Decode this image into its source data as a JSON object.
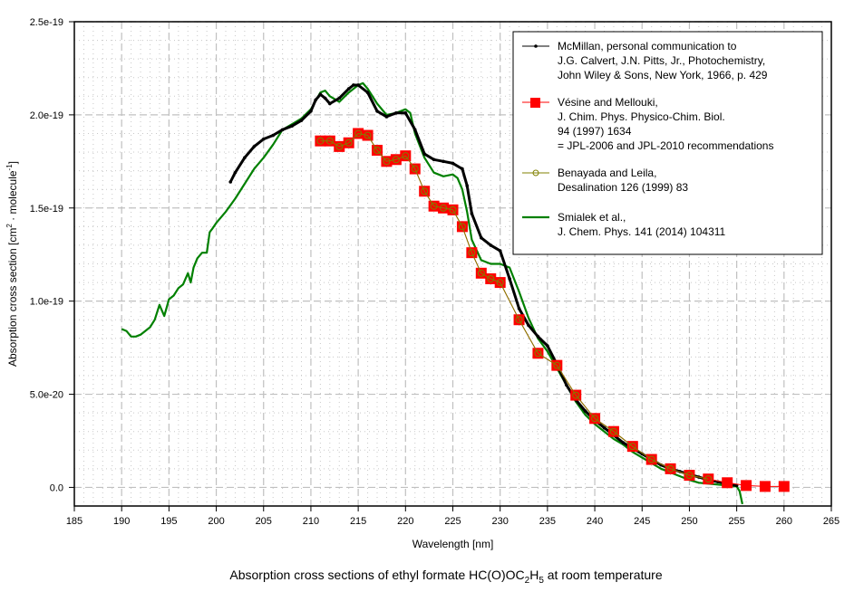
{
  "chart_data": {
    "type": "line",
    "title": "Absorption cross sections of ethyl formate HC(O)OC2H5 at room temperature",
    "title_parts": {
      "pre": "Absorption cross sections of ethyl formate HC(O)OC",
      "sub1": "2",
      "mid": "H",
      "sub2": "5",
      "post": " at room temperature"
    },
    "xlabel": "Wavelength [nm]",
    "ylabel_parts": {
      "pre": "Absorption cross section [cm",
      "sup1": "2",
      "mid": " · molecule",
      "sup2": "-1",
      "post": "]"
    },
    "ylabel": "Absorption cross section [cm2 · molecule-1]",
    "xlim": [
      185,
      265
    ],
    "ylim": [
      -1e-20,
      2.5e-19
    ],
    "grid": true,
    "legend_position": "top-right",
    "x_ticks": [
      "185",
      "190",
      "195",
      "200",
      "205",
      "210",
      "215",
      "220",
      "225",
      "230",
      "235",
      "240",
      "245",
      "250",
      "255",
      "260",
      "265"
    ],
    "y_ticks": [
      {
        "value": 0,
        "label": "0.0"
      },
      {
        "value": 5e-20,
        "label": "5.0e-20"
      },
      {
        "value": 1e-19,
        "label": "1.0e-19"
      },
      {
        "value": 1.5e-19,
        "label": "1.5e-19"
      },
      {
        "value": 2e-19,
        "label": "2.0e-19"
      },
      {
        "value": 2.5e-19,
        "label": "2.5e-19"
      }
    ],
    "series": [
      {
        "name": "McMillan",
        "legend": [
          "McMillan, personal communication to",
          "J.G. Calvert, J.N. Pitts, Jr., Photochemistry,",
          "John Wiley & Sons, New York, 1966, p. 429"
        ],
        "color": "#000000",
        "marker": "small-dot",
        "unit_scale": 1e-19,
        "x": [
          201.5,
          202,
          203,
          204,
          205,
          206,
          207,
          208,
          209,
          210,
          210.5,
          211,
          211.5,
          212,
          213,
          214,
          214.5,
          215,
          216,
          217,
          218,
          219,
          220,
          221,
          222,
          223,
          224,
          225,
          226,
          226.5,
          227,
          228,
          229,
          230,
          231,
          232,
          233,
          234,
          235,
          236,
          237,
          238,
          239,
          240,
          241,
          242,
          243,
          244,
          245,
          246,
          247,
          248,
          249,
          250,
          251,
          252,
          253,
          254,
          255
        ],
        "y": [
          1.64,
          1.69,
          1.77,
          1.83,
          1.87,
          1.89,
          1.92,
          1.94,
          1.97,
          2.02,
          2.08,
          2.11,
          2.09,
          2.06,
          2.09,
          2.14,
          2.16,
          2.16,
          2.12,
          2.02,
          1.99,
          2.01,
          2.01,
          1.92,
          1.79,
          1.76,
          1.75,
          1.74,
          1.71,
          1.62,
          1.47,
          1.34,
          1.3,
          1.27,
          1.12,
          0.96,
          0.87,
          0.81,
          0.76,
          0.66,
          0.55,
          0.47,
          0.41,
          0.36,
          0.32,
          0.28,
          0.24,
          0.21,
          0.18,
          0.15,
          0.12,
          0.1,
          0.085,
          0.07,
          0.055,
          0.04,
          0.03,
          0.02,
          0.01
        ]
      },
      {
        "name": "Vésine and Mellouki",
        "legend": [
          "Vésine and Mellouki,",
          "J. Chim. Phys. Physico-Chim. Biol.",
          "94 (1997) 1634",
          "= JPL-2006 and JPL-2010 recommendations"
        ],
        "color": "#ff0000",
        "marker": "square",
        "unit_scale": 1e-19,
        "x": [
          211,
          212,
          213,
          214,
          215,
          216,
          217,
          218,
          219,
          220,
          221,
          222,
          223,
          224,
          225,
          226,
          227,
          228,
          229,
          230,
          232,
          234,
          236,
          238,
          240,
          242,
          244,
          246,
          248,
          250,
          252,
          254,
          256,
          258,
          260
        ],
        "y": [
          1.86,
          1.86,
          1.83,
          1.85,
          1.9,
          1.89,
          1.81,
          1.75,
          1.76,
          1.78,
          1.71,
          1.59,
          1.51,
          1.5,
          1.49,
          1.4,
          1.26,
          1.15,
          1.12,
          1.1,
          0.9,
          0.72,
          0.655,
          0.495,
          0.37,
          0.3,
          0.22,
          0.15,
          0.1,
          0.065,
          0.045,
          0.025,
          0.01,
          0.005,
          0.005
        ]
      },
      {
        "name": "Benayada and Leila",
        "legend": [
          "Benayada and Leila,",
          "Desalination 126 (1999) 83"
        ],
        "color": "#808000",
        "marker": "open-circle",
        "unit_scale": 1e-19,
        "x": [
          211,
          212,
          213,
          214,
          215,
          216,
          217,
          218,
          219,
          220,
          221,
          222,
          223,
          224,
          225,
          226,
          227,
          228,
          229,
          230,
          232,
          234,
          236,
          238,
          240,
          242,
          244,
          246,
          248,
          250,
          252
        ],
        "y": [
          1.86,
          1.86,
          1.83,
          1.85,
          1.9,
          1.89,
          1.81,
          1.75,
          1.76,
          1.78,
          1.71,
          1.59,
          1.51,
          1.5,
          1.49,
          1.4,
          1.26,
          1.15,
          1.12,
          1.1,
          0.9,
          0.72,
          0.655,
          0.495,
          0.37,
          0.3,
          0.22,
          0.15,
          0.1,
          0.065,
          0.045
        ]
      },
      {
        "name": "Smialek et al.",
        "legend": [
          "Smialek et al.,",
          "J. Chem. Phys. 141 (2014) 104311"
        ],
        "color": "#008000",
        "marker": "none",
        "unit_scale": 1e-19,
        "x": [
          190,
          190.5,
          191,
          191.5,
          192,
          192.5,
          193,
          193.5,
          194,
          194.5,
          195,
          195.5,
          196,
          196.5,
          197,
          197.3,
          197.6,
          198,
          198.5,
          199,
          199.3,
          199.6,
          200,
          201,
          202,
          203,
          204,
          205,
          206,
          207,
          208,
          209,
          210,
          211,
          211.5,
          212,
          213,
          214,
          215,
          215.5,
          216,
          217,
          218,
          219,
          220,
          220.5,
          221,
          222,
          223,
          224,
          225,
          225.5,
          226,
          226.5,
          227,
          228,
          229,
          230,
          231,
          232,
          233,
          234,
          235,
          236,
          237,
          238,
          239,
          240,
          241,
          242,
          243,
          244,
          245,
          246,
          247,
          248,
          249,
          250,
          251,
          252,
          253,
          254,
          255,
          255.3,
          255.6
        ],
        "y": [
          0.85,
          0.84,
          0.81,
          0.81,
          0.82,
          0.84,
          0.86,
          0.9,
          0.98,
          0.92,
          1.01,
          1.03,
          1.07,
          1.09,
          1.15,
          1.1,
          1.18,
          1.23,
          1.26,
          1.26,
          1.37,
          1.39,
          1.42,
          1.48,
          1.55,
          1.63,
          1.71,
          1.77,
          1.84,
          1.92,
          1.95,
          1.98,
          2.03,
          2.12,
          2.13,
          2.1,
          2.07,
          2.12,
          2.16,
          2.17,
          2.14,
          2.06,
          2.0,
          2.01,
          2.03,
          2.01,
          1.9,
          1.77,
          1.69,
          1.67,
          1.68,
          1.66,
          1.6,
          1.48,
          1.33,
          1.22,
          1.2,
          1.2,
          1.18,
          1.05,
          0.91,
          0.8,
          0.73,
          0.64,
          0.55,
          0.46,
          0.39,
          0.34,
          0.3,
          0.26,
          0.23,
          0.19,
          0.16,
          0.13,
          0.1,
          0.08,
          0.06,
          0.04,
          0.025,
          0.02,
          0.015,
          0.01,
          0.005,
          -0.02,
          -0.09
        ]
      }
    ]
  }
}
